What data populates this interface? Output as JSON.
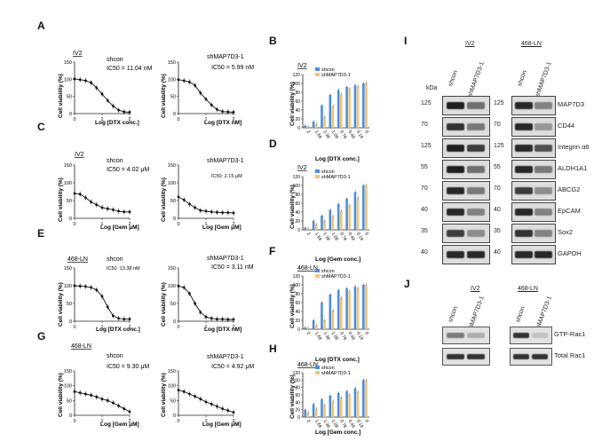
{
  "panels": {
    "A": {
      "letter": "A",
      "cell": "IV2",
      "left": {
        "cond": "shcon",
        "ic": "IC50 = 11.04 nM",
        "xlabel": "Log [DTX conc.]",
        "ylabel": "Cell viability (%)"
      },
      "right": {
        "cond": "shMAP7D3-1",
        "ic": "IC50 = 5.99 nM",
        "xlabel": "Log [DTX nM]",
        "ylabel": "Cell viability (%)"
      }
    },
    "C": {
      "letter": "C",
      "cell": "IV2",
      "left": {
        "cond": "shcon",
        "ic": "IC50 = 4.02 μM",
        "xlabel": "Log [Gem μM]",
        "ylabel": "Cell viability (%)"
      },
      "right": {
        "cond": "shMAP7D3-1",
        "ic": "IC50: 2.15 μM",
        "xlabel": "Log [Gem μM]",
        "ylabel": "Cell viability (%)"
      }
    },
    "E": {
      "letter": "E",
      "cell": "468-LN",
      "left": {
        "cond": "shcon",
        "ic": "IC50 :13.38 nM",
        "xlabel": "Log [DTX conc.]",
        "ylabel": "Cell viability (%)"
      },
      "right": {
        "cond": "shMAP7D3-1",
        "ic": "IC50 = 3.11 nM",
        "xlabel": "Log [DTX nM]",
        "ylabel": "Cell viability (%)"
      }
    },
    "G": {
      "letter": "G",
      "cell": "468-LN",
      "left": {
        "cond": "shcon",
        "ic": "IC50 = 9.30 μM",
        "xlabel": "Log [Gem μM]",
        "ylabel": "Cell viability (%)"
      },
      "right": {
        "cond": "shMAP7D3-1",
        "ic": "IC50 = 4.92 μM",
        "xlabel": "Log [Gem μM]",
        "ylabel": "Cell viability (%)"
      }
    },
    "B": {
      "letter": "B",
      "cell": "IV2",
      "xlabel": "Log [DTX conc.]",
      "ylabel": "Cell viability (%)"
    },
    "D": {
      "letter": "D",
      "cell": "IV2",
      "xlabel": "Log [Gem conc.]",
      "ylabel": "Cell viability (%)"
    },
    "F": {
      "letter": "F",
      "cell": "468-LN",
      "xlabel": "Log [DTX conc.]",
      "ylabel": "Cell viability (%)"
    },
    "H": {
      "letter": "H",
      "cell": "468-LN",
      "xlabel": "Log [Gem conc.]",
      "ylabel": "Cell viability (%)"
    },
    "I": {
      "letter": "I",
      "cell1": "IV2",
      "cell2": "468-LN",
      "kda": "kDa",
      "lane1": "shcon",
      "lane2": "shMAP7D3-1",
      "proteins": [
        {
          "name": "MAP7D3",
          "mw1": "125",
          "mw2": "125"
        },
        {
          "name": "CD44",
          "mw1": "70",
          "mw2": "70"
        },
        {
          "name": "Integrin α6",
          "mw1": "125",
          "mw2": "125"
        },
        {
          "name": "ALDH1A1",
          "mw1": "55",
          "mw2": "55"
        },
        {
          "name": "ABCG2",
          "mw1": "70",
          "mw2": "70"
        },
        {
          "name": "EpCAM",
          "mw1": "40",
          "mw2": "40"
        },
        {
          "name": "Sox2",
          "mw1": "35",
          "mw2": "35"
        },
        {
          "name": "GAPDH",
          "mw1": "40",
          "mw2": "40"
        }
      ]
    },
    "J": {
      "letter": "J",
      "cell1": "IV2",
      "cell2": "468-LN",
      "lane1": "shcon",
      "lane2": "shMAP7D3-1",
      "proteins": [
        {
          "name": "GTP-Rac1"
        },
        {
          "name": "Total Rac1"
        }
      ]
    }
  },
  "legend": {
    "shcon": "shcon",
    "sh": "shMAP7D3-1",
    "shcon_color": "#4a90d9",
    "sh_color": "#f3c27a"
  },
  "chart_data": [
    {
      "id": "A-left",
      "type": "scatter",
      "curve": "sigmoid",
      "xlim": [
        0,
        2
      ],
      "ylim": [
        0,
        150
      ],
      "xticks": [
        "0",
        "1",
        "2"
      ],
      "yticks": [
        "0",
        "50",
        "100",
        "150"
      ],
      "x": [
        0.0,
        0.2,
        0.4,
        0.6,
        0.8,
        1.0,
        1.2,
        1.4,
        1.6,
        1.8,
        2.0
      ],
      "y": [
        101,
        99,
        96,
        90,
        75,
        57,
        38,
        22,
        10,
        5,
        4
      ]
    },
    {
      "id": "A-right",
      "type": "scatter",
      "curve": "sigmoid",
      "xlim": [
        0,
        2
      ],
      "ylim": [
        0,
        150
      ],
      "xticks": [
        "0",
        "1",
        "2"
      ],
      "yticks": [
        "0",
        "50",
        "100",
        "150"
      ],
      "x": [
        0.0,
        0.2,
        0.4,
        0.6,
        0.8,
        1.0,
        1.2,
        1.4,
        1.6,
        1.8,
        2.0
      ],
      "y": [
        99,
        96,
        92,
        82,
        60,
        42,
        25,
        12,
        6,
        5,
        4
      ]
    },
    {
      "id": "C-left",
      "type": "scatter",
      "curve": "decay",
      "xlim": [
        0,
        2
      ],
      "ylim": [
        0,
        150
      ],
      "xticks": [
        "0",
        "1",
        "2"
      ],
      "yticks": [
        "0",
        "50",
        "100",
        "150"
      ],
      "x": [
        0.0,
        0.2,
        0.4,
        0.6,
        0.8,
        1.0,
        1.2,
        1.4,
        1.6,
        1.8,
        2.0
      ],
      "y": [
        70,
        68,
        58,
        46,
        38,
        30,
        27,
        24,
        20,
        18,
        18
      ]
    },
    {
      "id": "C-right",
      "type": "scatter",
      "curve": "decay",
      "xlim": [
        0,
        2
      ],
      "ylim": [
        0,
        150
      ],
      "xticks": [
        "0",
        "1",
        "2"
      ],
      "yticks": [
        "0",
        "50",
        "100",
        "150"
      ],
      "x": [
        0.0,
        0.2,
        0.4,
        0.6,
        0.8,
        1.0,
        1.2,
        1.4,
        1.6,
        1.8,
        2.0
      ],
      "y": [
        60,
        52,
        40,
        30,
        22,
        20,
        18,
        17,
        16,
        16,
        15
      ]
    },
    {
      "id": "E-left",
      "type": "scatter",
      "curve": "sigmoid",
      "xlim": [
        0,
        2
      ],
      "ylim": [
        0,
        150
      ],
      "xticks": [
        "0",
        "1",
        "2"
      ],
      "yticks": [
        "0",
        "50",
        "100",
        "150"
      ],
      "x": [
        0.0,
        0.2,
        0.4,
        0.6,
        0.8,
        1.0,
        1.2,
        1.4,
        1.6,
        1.8,
        2.0
      ],
      "y": [
        100,
        99,
        98,
        95,
        88,
        70,
        40,
        15,
        8,
        6,
        6
      ]
    },
    {
      "id": "E-right",
      "type": "scatter",
      "curve": "sigmoid",
      "xlim": [
        0,
        2
      ],
      "ylim": [
        0,
        150
      ],
      "xticks": [
        "0",
        "1",
        "2"
      ],
      "yticks": [
        "0",
        "50",
        "100",
        "150"
      ],
      "x": [
        0.0,
        0.2,
        0.4,
        0.6,
        0.8,
        1.0,
        1.2,
        1.4,
        1.6,
        1.8,
        2.0
      ],
      "y": [
        99,
        95,
        78,
        50,
        25,
        12,
        8,
        6,
        6,
        5,
        5
      ]
    },
    {
      "id": "G-left",
      "type": "scatter",
      "curve": "decay",
      "xlim": [
        0,
        2
      ],
      "ylim": [
        0,
        150
      ],
      "xticks": [
        "0",
        "1",
        "2"
      ],
      "yticks": [
        "0",
        "50",
        "100",
        "150"
      ],
      "x": [
        0.0,
        0.2,
        0.4,
        0.6,
        0.8,
        1.0,
        1.2,
        1.4,
        1.6,
        1.8,
        2.0
      ],
      "y": [
        80,
        76,
        72,
        68,
        62,
        55,
        50,
        42,
        32,
        22,
        12
      ]
    },
    {
      "id": "G-right",
      "type": "scatter",
      "curve": "decay",
      "xlim": [
        0,
        2
      ],
      "ylim": [
        0,
        150
      ],
      "xticks": [
        "0",
        "1",
        "2"
      ],
      "yticks": [
        "0",
        "50",
        "100",
        "150"
      ],
      "x": [
        0.0,
        0.2,
        0.4,
        0.6,
        0.8,
        1.0,
        1.2,
        1.4,
        1.6,
        1.8,
        2.0
      ],
      "y": [
        85,
        80,
        72,
        64,
        55,
        45,
        38,
        30,
        22,
        16,
        10
      ]
    },
    {
      "id": "B",
      "type": "bar",
      "ylim": [
        0,
        120
      ],
      "yticks": [
        "0",
        "20",
        "40",
        "60",
        "80",
        "100",
        "120"
      ],
      "categories": [
        "2",
        "1.69",
        "1.39",
        "1.09",
        "0.79",
        "0.49",
        "0.19",
        "0"
      ],
      "series": [
        {
          "name": "shcon",
          "values": [
            5,
            14,
            50,
            74,
            85,
            92,
            96,
            100
          ]
        },
        {
          "name": "shMAP7D3-1",
          "values": [
            3,
            8,
            24,
            48,
            75,
            88,
            93,
            100
          ]
        }
      ]
    },
    {
      "id": "D",
      "type": "bar",
      "ylim": [
        0,
        120
      ],
      "yticks": [
        "0",
        "20",
        "40",
        "60",
        "80",
        "100",
        "120"
      ],
      "categories": [
        "2",
        "1.69",
        "1.39",
        "1.09",
        "0.79",
        "0.49",
        "0.19",
        "0"
      ],
      "series": [
        {
          "name": "shcon",
          "values": [
            5,
            20,
            32,
            45,
            58,
            70,
            85,
            100
          ]
        },
        {
          "name": "shMAP7D3-1",
          "values": [
            3,
            12,
            20,
            30,
            42,
            55,
            72,
            100
          ]
        }
      ]
    },
    {
      "id": "F",
      "type": "bar",
      "ylim": [
        0,
        120
      ],
      "yticks": [
        "0",
        "20",
        "40",
        "60",
        "80",
        "100",
        "120"
      ],
      "categories": [
        "2",
        "1.69",
        "1.39",
        "1.09",
        "0.79",
        "0.49",
        "0.19",
        "0"
      ],
      "series": [
        {
          "name": "shcon",
          "values": [
            4,
            20,
            60,
            78,
            88,
            92,
            96,
            100
          ]
        },
        {
          "name": "shMAP7D3-1",
          "values": [
            3,
            8,
            20,
            42,
            70,
            85,
            92,
            100
          ]
        }
      ]
    },
    {
      "id": "H",
      "type": "bar",
      "ylim": [
        0,
        120
      ],
      "yticks": [
        "0",
        "20",
        "40",
        "60",
        "80",
        "100",
        "120"
      ],
      "categories": [
        "2",
        "1.69",
        "1.39",
        "1.09",
        "0.79",
        "0.49",
        "0.19",
        "0"
      ],
      "series": [
        {
          "name": "shcon",
          "values": [
            20,
            35,
            48,
            58,
            65,
            70,
            78,
            100
          ]
        },
        {
          "name": "shMAP7D3-1",
          "values": [
            12,
            22,
            32,
            42,
            52,
            60,
            68,
            100
          ]
        }
      ]
    }
  ]
}
